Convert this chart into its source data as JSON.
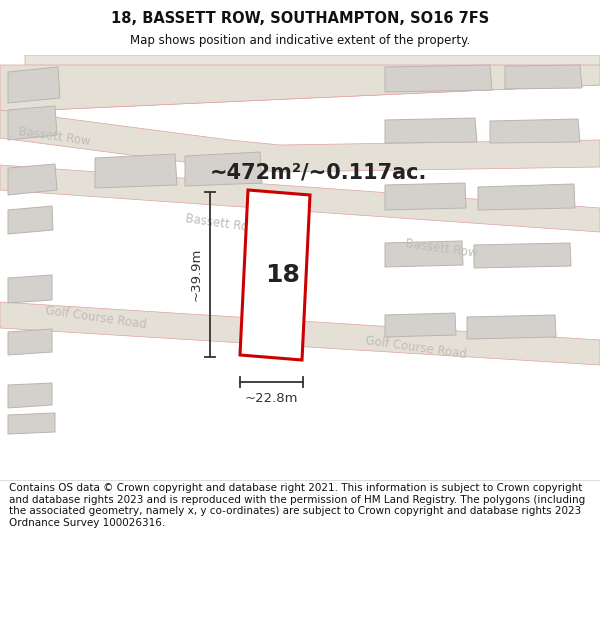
{
  "title": "18, BASSETT ROW, SOUTHAMPTON, SO16 7FS",
  "subtitle": "Map shows position and indicative extent of the property.",
  "area_label": "~472m²/~0.117ac.",
  "width_label": "~22.8m",
  "height_label": "~39.9m",
  "number_label": "18",
  "footer": "Contains OS data © Crown copyright and database right 2021. This information is subject to Crown copyright and database rights 2023 and is reproduced with the permission of HM Land Registry. The polygons (including the associated geometry, namely x, y co-ordinates) are subject to Crown copyright and database rights 2023 Ordnance Survey 100026316.",
  "bg_color": "#f2ede6",
  "road_fill": "#e8e2d8",
  "road_stroke": "#e0a0a0",
  "building_fill": "#d4d0cc",
  "building_stroke": "#b8b4b0",
  "property_stroke": "#cc0000",
  "property_fill": "#ffffff",
  "road_label_color": "#c0bcb8",
  "dim_line_color": "#333333",
  "title_color": "#111111",
  "footer_color": "#111111"
}
